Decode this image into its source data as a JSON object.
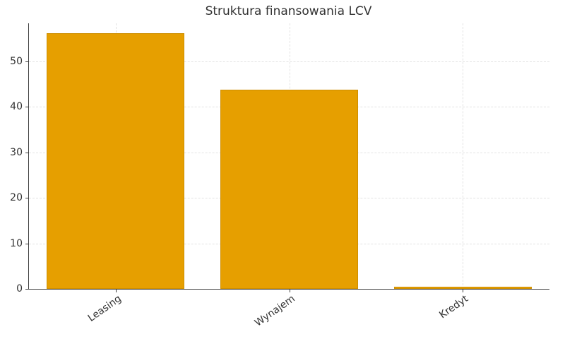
{
  "chart_data": {
    "type": "bar",
    "title": "Struktura finansowania LCV",
    "categories": [
      "Leasing",
      "Wynajem",
      "Kredyt"
    ],
    "values": [
      56.1,
      43.7,
      0.5
    ],
    "xlabel": "",
    "ylabel": "",
    "yticks": [
      0,
      10,
      20,
      30,
      40,
      50
    ],
    "ylim": [
      0,
      58.3
    ],
    "x_tick_rotation_deg": 35,
    "grid": "dashed horizontal and vertical, light gray",
    "legend": "none",
    "bar_color": "#E69F00",
    "bar_edge_color": "#CE8E00"
  },
  "colors": {
    "background": "#ffffff",
    "axis_spine": "#3d3d3d",
    "grid": "#e2e2e2",
    "text": "#333333"
  }
}
